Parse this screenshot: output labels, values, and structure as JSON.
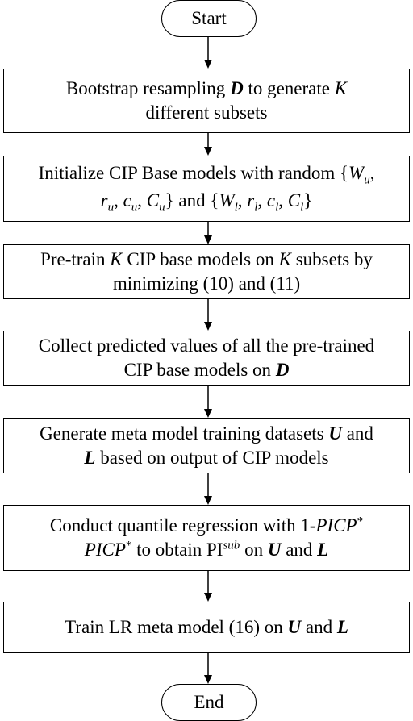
{
  "nodes": [
    {
      "lines": [
        [
          "Start"
        ]
      ]
    },
    {
      "lines": [
        [
          "Bootstrap resampling ",
          {
            "text": "D",
            "style": "bold italic"
          },
          " to generate ",
          {
            "text": "K",
            "style": "italic"
          }
        ],
        [
          "different subsets"
        ]
      ]
    },
    {
      "lines": [
        [
          "Initialize CIP Base models with random {",
          {
            "text": "W",
            "style": "italic"
          },
          {
            "text": "u",
            "style": "italic sub"
          },
          ","
        ],
        [
          {
            "text": "r",
            "style": "italic"
          },
          {
            "text": "u",
            "style": "italic sub"
          },
          ", ",
          {
            "text": "c",
            "style": "italic"
          },
          {
            "text": "u",
            "style": "italic sub"
          },
          ", ",
          {
            "text": "C",
            "style": "italic"
          },
          {
            "text": "u",
            "style": "italic sub"
          },
          "} and {",
          {
            "text": "W",
            "style": "italic"
          },
          {
            "text": "l",
            "style": "italic sub"
          },
          ", ",
          {
            "text": "r",
            "style": "italic"
          },
          {
            "text": "l",
            "style": "italic sub"
          },
          ", ",
          {
            "text": "c",
            "style": "italic"
          },
          {
            "text": "l",
            "style": "italic sub"
          },
          ", ",
          {
            "text": "C",
            "style": "italic"
          },
          {
            "text": "l",
            "style": "italic sub"
          },
          "}"
        ]
      ]
    },
    {
      "lines": [
        [
          "Pre-train ",
          {
            "text": "K",
            "style": "italic"
          },
          " CIP base models on ",
          {
            "text": "K",
            "style": "italic"
          },
          " subsets by"
        ],
        [
          "minimizing (10) and (11)"
        ]
      ]
    },
    {
      "lines": [
        [
          "Collect predicted values of all the pre-trained"
        ],
        [
          "CIP base models on ",
          {
            "text": "D",
            "style": "bold italic"
          }
        ]
      ]
    },
    {
      "lines": [
        [
          "Generate meta model training datasets ",
          {
            "text": "U",
            "style": "bold italic"
          },
          " and"
        ],
        [
          {
            "text": "L",
            "style": "bold italic"
          },
          " based on output of CIP models"
        ]
      ]
    },
    {
      "lines": [
        [
          "Conduct quantile regression with 1-",
          {
            "text": "PICP",
            "style": "italic"
          },
          {
            "text": "*",
            "style": "sup"
          }
        ],
        [
          {
            "text": "PICP",
            "style": "italic"
          },
          {
            "text": "*",
            "style": "sup"
          },
          " to obtain PI",
          {
            "text": "sub",
            "style": "italic sup"
          },
          " on ",
          {
            "text": "U",
            "style": "bold italic"
          },
          " and ",
          {
            "text": "L",
            "style": "bold italic"
          }
        ]
      ]
    },
    {
      "lines": [
        [
          "Train LR meta model (16) on ",
          {
            "text": "U",
            "style": "bold italic"
          },
          " and ",
          {
            "text": "L",
            "style": "bold italic"
          }
        ]
      ]
    },
    {
      "lines": [
        [
          "End"
        ]
      ]
    }
  ]
}
